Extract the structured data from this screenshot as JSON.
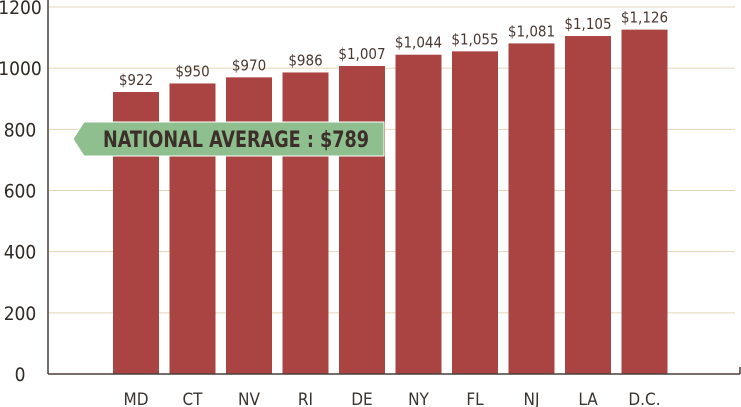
{
  "chart_data": {
    "type": "bar",
    "categories": [
      "MD",
      "CT",
      "NV",
      "RI",
      "DE",
      "NY",
      "FL",
      "NJ",
      "LA",
      "D.C."
    ],
    "values": [
      922,
      950,
      970,
      986,
      1007,
      1044,
      1055,
      1081,
      1105,
      1126
    ],
    "data_labels": [
      "$922",
      "$950",
      "$970",
      "$986",
      "$1,007",
      "$1,044",
      "$1,055",
      "$1,081",
      "$1,105",
      "$1,126"
    ],
    "yticks": [
      0,
      200,
      400,
      600,
      800,
      1000,
      1200
    ],
    "ylim": [
      0,
      1200
    ],
    "grid": true,
    "annotation": {
      "label": "NATIONAL AVERAGE : $789",
      "value": 789
    },
    "colors": {
      "bar": "#a94442",
      "grid": "#e4d5b8",
      "axis": "#4a3f3a",
      "annotation_fill": "#8fbf8f"
    }
  }
}
